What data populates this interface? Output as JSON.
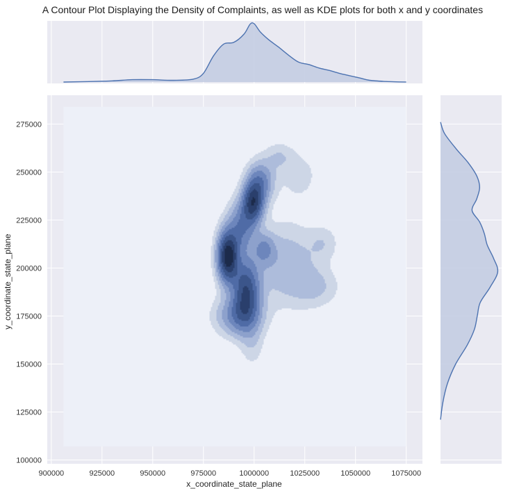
{
  "chart_data": {
    "type": "contour",
    "title": "A Contour Plot Displaying the Density of Complaints, as well as KDE plots for both x and y coordinates",
    "xlabel": "x_coordinate_state_plane",
    "ylabel": "y_coordinate_state_plane",
    "xlim": [
      898000,
      1083000
    ],
    "ylim": [
      98000,
      290000
    ],
    "x_ticks": [
      900000,
      925000,
      950000,
      975000,
      1000000,
      1025000,
      1050000,
      1075000
    ],
    "y_ticks": [
      100000,
      125000,
      150000,
      175000,
      200000,
      225000,
      250000,
      275000
    ],
    "x_tick_labels": [
      "900000",
      "925000",
      "950000",
      "975000",
      "1000000",
      "1025000",
      "1050000",
      "1075000"
    ],
    "y_tick_labels": [
      "100000",
      "125000",
      "150000",
      "175000",
      "200000",
      "225000",
      "250000",
      "275000"
    ],
    "grid": true,
    "contour_extent": {
      "x": [
        906000,
        1075000
      ],
      "y": [
        107000,
        284000
      ]
    },
    "density_components": [
      {
        "x": 987000,
        "y": 206000,
        "sx": 3500,
        "sy": 9000,
        "w": 1.0
      },
      {
        "x": 999500,
        "y": 234000,
        "sx": 3500,
        "sy": 7000,
        "w": 0.75
      },
      {
        "x": 1003000,
        "y": 245000,
        "sx": 4500,
        "sy": 7000,
        "w": 0.4
      },
      {
        "x": 996000,
        "y": 188000,
        "sx": 4500,
        "sy": 11000,
        "w": 0.7
      },
      {
        "x": 992500,
        "y": 175000,
        "sx": 7500,
        "sy": 7000,
        "w": 0.38
      },
      {
        "x": 994000,
        "y": 222000,
        "sx": 4500,
        "sy": 9000,
        "w": 0.42
      },
      {
        "x": 1005000,
        "y": 210000,
        "sx": 3500,
        "sy": 5500,
        "w": 0.27
      },
      {
        "x": 1015000,
        "y": 202000,
        "sx": 11000,
        "sy": 14000,
        "w": 0.2
      },
      {
        "x": 1030000,
        "y": 190000,
        "sx": 8000,
        "sy": 7000,
        "w": 0.13
      },
      {
        "x": 1034000,
        "y": 213000,
        "sx": 5000,
        "sy": 6000,
        "w": 0.1
      },
      {
        "x": 1012000,
        "y": 258000,
        "sx": 5000,
        "sy": 5000,
        "w": 0.12
      },
      {
        "x": 1022000,
        "y": 248000,
        "sx": 7000,
        "sy": 9000,
        "w": 0.09
      },
      {
        "x": 999000,
        "y": 160000,
        "sx": 4000,
        "sy": 8000,
        "w": 0.1
      },
      {
        "x": 946000,
        "y": 166000,
        "sx": 4000,
        "sy": 3000,
        "w": 0.06
      },
      {
        "x": 1045000,
        "y": 218000,
        "sx": 1300,
        "sy": 1800,
        "w": 0.05
      }
    ],
    "contour_levels": [
      0.06,
      0.13,
      0.22,
      0.33,
      0.46,
      0.6,
      0.75,
      0.9
    ],
    "contour_colors": [
      "#cdd6e6",
      "#adbcdb",
      "#8da1cc",
      "#6d86bc",
      "#4f6ba6",
      "#3b558a",
      "#2a3f6c",
      "#1c2b4b",
      "#0e172c"
    ],
    "marginal_x": {
      "x": [
        906000,
        920000,
        930000,
        940000,
        950000,
        960000,
        970000,
        975000,
        980000,
        985000,
        990000,
        995000,
        998000,
        1000000,
        1003000,
        1007000,
        1012000,
        1017000,
        1022000,
        1027000,
        1032000,
        1037000,
        1042000,
        1047000,
        1052000,
        1057000,
        1065000,
        1075000
      ],
      "y": [
        0.0,
        0.01,
        0.02,
        0.04,
        0.04,
        0.03,
        0.05,
        0.15,
        0.45,
        0.65,
        0.68,
        0.82,
        0.99,
        1.0,
        0.86,
        0.73,
        0.6,
        0.46,
        0.34,
        0.3,
        0.24,
        0.2,
        0.15,
        0.11,
        0.07,
        0.03,
        0.01,
        0.0
      ]
    },
    "marginal_y": {
      "y": [
        121000,
        130000,
        140000,
        150000,
        160000,
        168000,
        175000,
        182000,
        190000,
        198000,
        205000,
        212000,
        218000,
        224000,
        230000,
        236000,
        242000,
        248000,
        255000,
        262000,
        270000,
        276000
      ],
      "x": [
        0.0,
        0.04,
        0.12,
        0.26,
        0.46,
        0.58,
        0.63,
        0.68,
        0.85,
        0.98,
        0.91,
        0.8,
        0.75,
        0.67,
        0.54,
        0.62,
        0.67,
        0.62,
        0.47,
        0.27,
        0.07,
        0.0
      ]
    },
    "colors": {
      "line": "#4c72b0",
      "fill": "#c2cbe2",
      "panel_bg": "#eaeaf2",
      "plot_bg": "#edf0f8",
      "grid": "#ffffff"
    }
  }
}
